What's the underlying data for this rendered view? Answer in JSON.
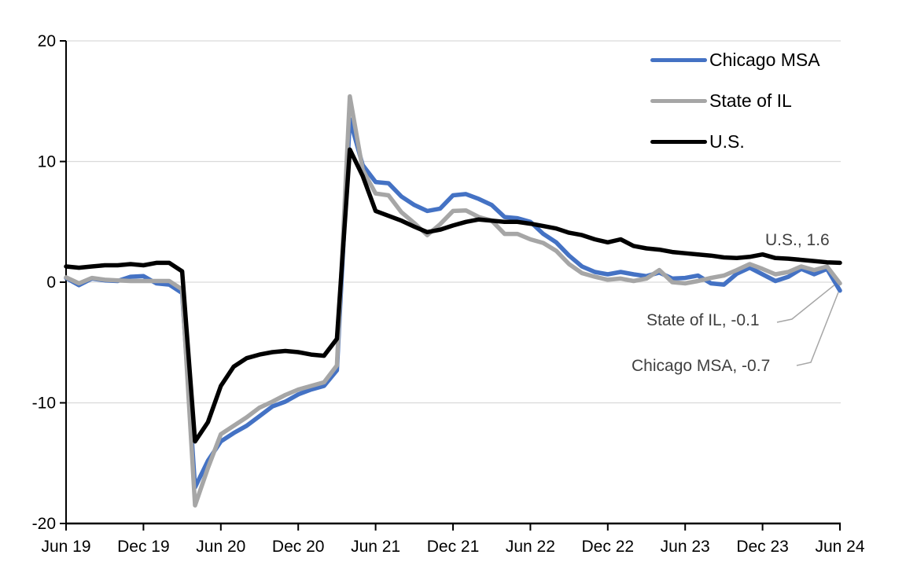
{
  "chart_data": {
    "type": "line",
    "x_unit": "month",
    "x_range": [
      "Jun 2019",
      "Jun 2024"
    ],
    "x_tick_labels": [
      "Jun 19",
      "Dec 19",
      "Jun 20",
      "Dec 20",
      "Jun 21",
      "Dec 21",
      "Jun 22",
      "Dec 22",
      "Jun 23",
      "Dec 23",
      "Jun 24"
    ],
    "x_tick_interval_months": 6,
    "ylim": [
      -20,
      20
    ],
    "y_ticks": [
      20,
      10,
      0,
      -10,
      -20
    ],
    "y_tick_labels": [
      "20",
      "10",
      "0",
      "-10",
      "-20"
    ],
    "grid": true,
    "legend_position": "top-right",
    "colors": {
      "gridline": "#D9D9D9",
      "axis": "#000000",
      "annotation_text": "#404040",
      "leader_line": "#A6A6A6",
      "background": "#FFFFFF"
    },
    "series": [
      {
        "name": "Chicago MSA",
        "color": "#4472C4",
        "values": [
          0.35,
          -0.25,
          0.3,
          0.15,
          0.1,
          0.45,
          0.5,
          -0.1,
          -0.2,
          -0.9,
          -17.0,
          -14.8,
          -13.2,
          -12.5,
          -11.9,
          -11.1,
          -10.3,
          -9.9,
          -9.3,
          -8.9,
          -8.6,
          -7.3,
          13.5,
          9.7,
          8.3,
          8.2,
          7.1,
          6.4,
          5.9,
          6.1,
          7.2,
          7.3,
          6.9,
          6.4,
          5.4,
          5.3,
          5.0,
          4.0,
          3.3,
          2.2,
          1.3,
          0.85,
          0.65,
          0.85,
          0.65,
          0.5,
          0.8,
          0.3,
          0.35,
          0.55,
          -0.1,
          -0.2,
          0.7,
          1.2,
          0.65,
          0.1,
          0.45,
          1.1,
          0.65,
          1.1,
          -0.7
        ]
      },
      {
        "name": "State of IL",
        "color": "#A6A6A6",
        "values": [
          0.4,
          -0.1,
          0.35,
          0.2,
          0.15,
          0.1,
          0.1,
          0.1,
          0.1,
          -0.6,
          -18.5,
          -15.4,
          -12.6,
          -11.9,
          -11.2,
          -10.4,
          -9.9,
          -9.35,
          -8.9,
          -8.6,
          -8.3,
          -6.9,
          15.4,
          9.3,
          7.35,
          7.2,
          5.8,
          4.9,
          3.9,
          4.8,
          5.9,
          5.95,
          5.4,
          5.1,
          4.0,
          4.0,
          3.55,
          3.25,
          2.6,
          1.5,
          0.75,
          0.45,
          0.2,
          0.3,
          0.1,
          0.3,
          1.0,
          0.0,
          -0.1,
          0.1,
          0.35,
          0.55,
          1.0,
          1.5,
          1.1,
          0.65,
          0.85,
          1.3,
          1.0,
          1.3,
          -0.1
        ]
      },
      {
        "name": "U.S.",
        "color": "#000000",
        "values": [
          1.3,
          1.2,
          1.3,
          1.4,
          1.4,
          1.5,
          1.4,
          1.6,
          1.6,
          0.9,
          -13.2,
          -11.6,
          -8.6,
          -7.0,
          -6.3,
          -6.0,
          -5.8,
          -5.7,
          -5.8,
          -6.0,
          -6.1,
          -4.7,
          11.0,
          8.8,
          5.9,
          5.5,
          5.1,
          4.6,
          4.15,
          4.35,
          4.7,
          5.0,
          5.2,
          5.1,
          5.0,
          5.0,
          4.85,
          4.65,
          4.45,
          4.1,
          3.9,
          3.55,
          3.3,
          3.55,
          3.0,
          2.8,
          2.7,
          2.5,
          2.4,
          2.3,
          2.2,
          2.05,
          2.0,
          2.1,
          2.3,
          2.0,
          1.95,
          1.85,
          1.75,
          1.65,
          1.6
        ]
      }
    ],
    "annotations": [
      {
        "text": "U.S., 1.6",
        "series": "U.S.",
        "value": 1.6
      },
      {
        "text": "State of IL, -0.1",
        "series": "State of IL",
        "value": -0.1
      },
      {
        "text": "Chicago MSA, -0.7",
        "series": "Chicago MSA",
        "value": -0.7
      }
    ]
  },
  "legend": {
    "items": [
      {
        "label": "Chicago MSA"
      },
      {
        "label": "State of IL"
      },
      {
        "label": "U.S."
      }
    ]
  }
}
